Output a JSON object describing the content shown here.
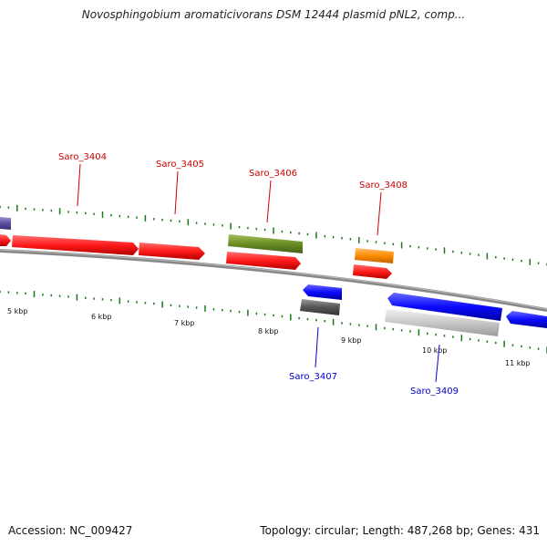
{
  "title": "Novosphingobium aromaticivorans DSM 12444 plasmid pNL2, comp...",
  "footer": {
    "accession": "Accession: NC_009427",
    "summary": "Topology: circular; Length: 487,268 bp; Genes: 431"
  },
  "scale_labels": [
    "5 kbp",
    "6 kbp",
    "7 kbp",
    "8 kbp",
    "9 kbp",
    "10 kbp",
    "11 kbp"
  ],
  "gene_labels_forward": [
    "Saro_3404",
    "Saro_3405",
    "Saro_3406",
    "Saro_3408"
  ],
  "gene_labels_reverse": [
    "Saro_3407",
    "Saro_3409"
  ],
  "colors": {
    "forward_label": "#cc0000",
    "reverse_label": "#0000cc",
    "cds_forward": "#ff1a1a",
    "cds_reverse": "#0a0aff",
    "gene_olive": "#6b8e23",
    "gene_orange": "#ff8c00",
    "gene_gray": "#555555",
    "gene_lightgray": "#c8c8c8",
    "gene_purple": "#5a4fa0",
    "tick": "#1a7a1a",
    "backbone": "#888888"
  }
}
